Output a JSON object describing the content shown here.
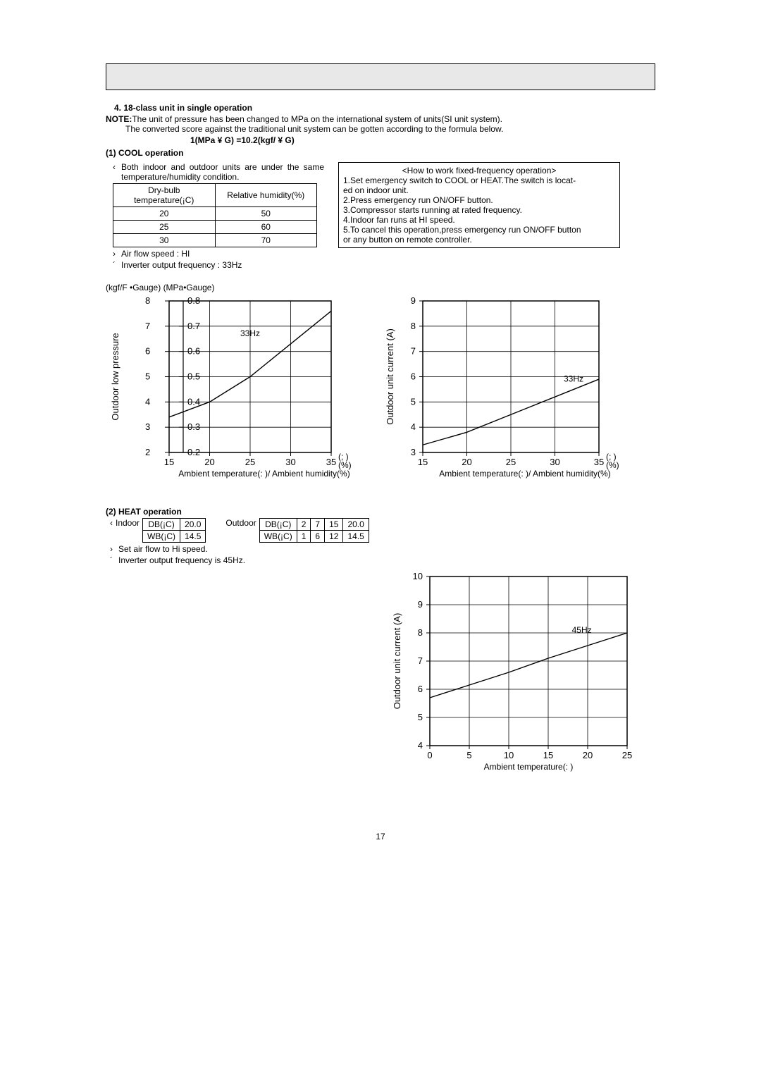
{
  "header": {
    "title": "4. 18-class unit in single operation",
    "note_label": "NOTE:",
    "note_line1": "The unit of pressure has been changed to MPa on the international system of units(SI unit system).",
    "note_line2": "The converted score against the traditional unit system can be gotten according to the formula below.",
    "formula": "1(MPa ¥ G) =10.2(kgf/    ¥ G)"
  },
  "cool": {
    "heading": "(1) COOL operation",
    "bullet1_dot": "‹",
    "bullet1": "Both indoor and outdoor units are under the same temperature/humidity condition.",
    "table": {
      "col1": "Dry-bulb temperature(¡C)",
      "col2": "Relative humidity(%)",
      "rows": [
        [
          "20",
          "50"
        ],
        [
          "25",
          "60"
        ],
        [
          "30",
          "70"
        ]
      ]
    },
    "b2_dot": "›",
    "b2": "Air flow speed : HI",
    "b3_dot": "´",
    "b3": "Inverter output frequency : 33Hz",
    "howbox_title": "<How to work fixed-frequency operation>",
    "howbox_lines": [
      "1.Set emergency switch to COOL or HEAT.The switch is locat-",
      "   ed on indoor unit.",
      "2.Press emergency run ON/OFF button.",
      "3.Compressor starts running at rated frequency.",
      "4.Indoor fan runs at HI speed.",
      "5.To cancel this operation,press emergency run ON/OFF button",
      "   or any button on remote controller."
    ],
    "axes_caption": "(kgf/F  •Gauge) (MPa•Gauge)"
  },
  "chart1": {
    "type": "line",
    "ylabel": "Outdoor low pressure",
    "xlabel": "Ambient temperature(:  )/ Ambient humidity(%)",
    "annot": "33Hz",
    "x_unit_top": "(; )",
    "x_unit_bot": "(%)",
    "y_kgf": [
      2,
      3,
      4,
      5,
      6,
      7,
      8
    ],
    "y_mpa": [
      "0.2",
      "0.3",
      "0.4",
      "0.5",
      "0.6",
      "0.7",
      "0.8"
    ],
    "x_ticks": [
      15,
      20,
      25,
      30,
      35
    ],
    "x_range": [
      15,
      35
    ],
    "y_range_kgf": [
      2,
      8
    ],
    "line": [
      [
        15,
        3.4
      ],
      [
        20,
        4.0
      ],
      [
        25,
        5.0
      ],
      [
        30,
        6.3
      ],
      [
        35,
        7.6
      ]
    ],
    "line_color": "#000000",
    "grid_color": "#000000",
    "background_color": "#ffffff",
    "line_width": 1.4
  },
  "chart2": {
    "type": "line",
    "ylabel": "Outdoor unit current (A)",
    "xlabel": "Ambient temperature(:  )/ Ambient humidity(%)",
    "annot": "33Hz",
    "x_unit_top": "(; )",
    "x_unit_bot": "(%)",
    "y_ticks": [
      3,
      4,
      5,
      6,
      7,
      8,
      9
    ],
    "x_ticks": [
      15,
      20,
      25,
      30,
      35
    ],
    "x_range": [
      15,
      35
    ],
    "y_range": [
      3,
      9
    ],
    "line": [
      [
        15,
        3.3
      ],
      [
        20,
        3.8
      ],
      [
        25,
        4.5
      ],
      [
        30,
        5.2
      ],
      [
        35,
        5.9
      ]
    ],
    "line_color": "#000000",
    "grid_color": "#000000",
    "background_color": "#ffffff",
    "line_width": 1.4
  },
  "heat": {
    "heading": "(2) HEAT operation",
    "indoor_label": "Indoor",
    "outdoor_label": "Outdoor",
    "bullet_dot": "‹",
    "indoor_table": {
      "rows": [
        [
          "DB(¡C)",
          "20.0"
        ],
        [
          "WB(¡C)",
          "14.5"
        ]
      ]
    },
    "outdoor_table": {
      "rows": [
        [
          "DB(¡C)",
          "2",
          "7",
          "15",
          "20.0"
        ],
        [
          "WB(¡C)",
          "1",
          "6",
          "12",
          "14.5"
        ]
      ]
    },
    "b2_dot": "›",
    "b2": "Set air flow to Hi speed.",
    "b3_dot": "´",
    "b3": "Inverter output frequency is 45Hz."
  },
  "chart3": {
    "type": "line",
    "ylabel": "Outdoor unit current (A)",
    "xlabel": "Ambient temperature(:  )",
    "annot": "45Hz",
    "y_ticks": [
      4,
      5,
      6,
      7,
      8,
      9,
      10
    ],
    "x_ticks": [
      0,
      5,
      10,
      15,
      20,
      25
    ],
    "x_range": [
      0,
      25
    ],
    "y_range": [
      4,
      10
    ],
    "line": [
      [
        0,
        5.7
      ],
      [
        5,
        6.15
      ],
      [
        10,
        6.6
      ],
      [
        15,
        7.1
      ],
      [
        20,
        7.55
      ],
      [
        25,
        8.0
      ]
    ],
    "line_color": "#000000",
    "grid_color": "#000000",
    "background_color": "#ffffff",
    "line_width": 1.4
  },
  "page_number": "17"
}
